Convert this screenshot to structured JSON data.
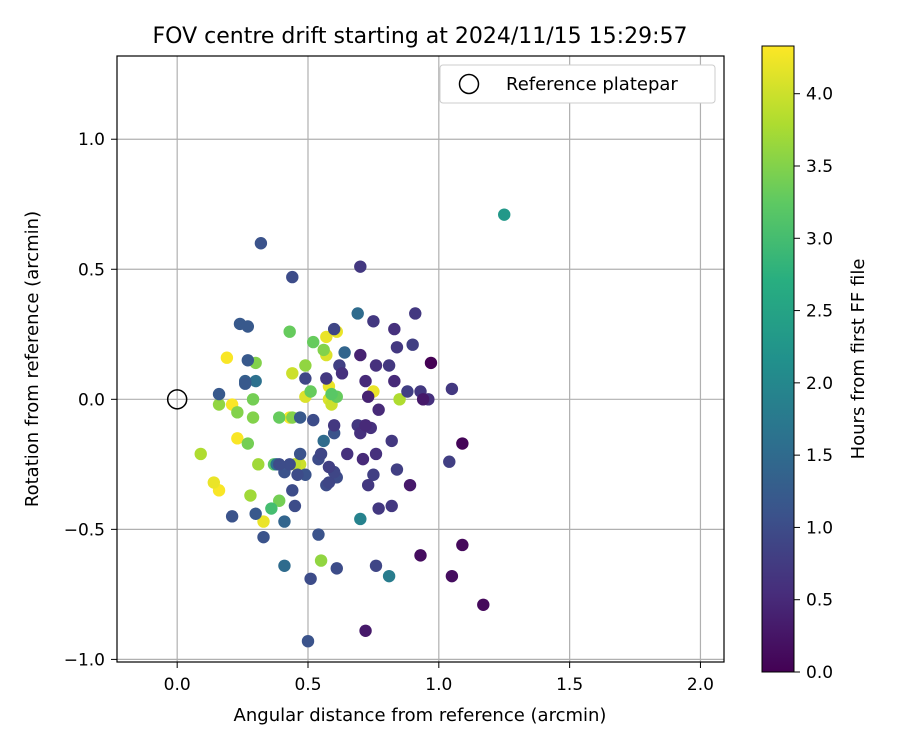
{
  "chart_data": {
    "type": "scatter",
    "title": "FOV centre drift starting at 2024/11/15 15:29:57",
    "xlabel": "Angular distance from reference (arcmin)",
    "ylabel": "Rotation from reference (arcmin)",
    "xlim": [
      -0.23,
      2.09
    ],
    "ylim": [
      -1.01,
      1.32
    ],
    "xticks": [
      0.0,
      0.5,
      1.0,
      1.5,
      2.0
    ],
    "xtick_labels": [
      "0.0",
      "0.5",
      "1.0",
      "1.5",
      "2.0"
    ],
    "yticks": [
      -1.0,
      -0.5,
      0.0,
      0.5,
      1.0
    ],
    "ytick_labels": [
      "−1.0",
      "−0.5",
      "0.0",
      "0.5",
      "1.0"
    ],
    "grid": true,
    "legend": {
      "placement": "top-right",
      "entries": [
        "Reference platepar"
      ]
    },
    "reference_point": {
      "x": 0.0,
      "y": 0.0,
      "marker": "open-circle",
      "color": "#000000"
    },
    "colorbar": {
      "label": "Hours from first FF file",
      "range": [
        0.0,
        4.33
      ],
      "ticks": [
        0.0,
        0.5,
        1.0,
        1.5,
        2.0,
        2.5,
        3.0,
        3.5,
        4.0
      ],
      "tick_labels": [
        "0.0",
        "0.5",
        "1.0",
        "1.5",
        "2.0",
        "2.5",
        "3.0",
        "3.5",
        "4.0"
      ],
      "colormap": "viridis",
      "colormap_stops": [
        "#440154",
        "#472d7b",
        "#3b528b",
        "#2c728e",
        "#21918c",
        "#28ae80",
        "#5ec962",
        "#addc30",
        "#fde725"
      ]
    },
    "points": [
      [
        0.97,
        0.14,
        0.0
      ],
      [
        1.09,
        -0.17,
        0.05
      ],
      [
        1.09,
        -0.56,
        0.1
      ],
      [
        1.17,
        -0.79,
        0.1
      ],
      [
        1.05,
        -0.68,
        0.15
      ],
      [
        0.93,
        -0.6,
        0.15
      ],
      [
        0.72,
        -0.89,
        0.3
      ],
      [
        0.89,
        -0.33,
        0.3
      ],
      [
        0.94,
        0.0,
        0.3
      ],
      [
        0.73,
        0.01,
        0.4
      ],
      [
        0.71,
        -0.23,
        0.5
      ],
      [
        0.72,
        -0.1,
        0.5
      ],
      [
        0.7,
        -0.13,
        0.6
      ],
      [
        0.65,
        -0.21,
        0.6
      ],
      [
        0.63,
        0.1,
        0.6
      ],
      [
        0.7,
        0.17,
        0.4
      ],
      [
        0.6,
        -0.1,
        0.7
      ],
      [
        0.72,
        0.07,
        0.5
      ],
      [
        0.69,
        -0.1,
        0.7
      ],
      [
        0.74,
        -0.11,
        0.6
      ],
      [
        0.77,
        -0.04,
        0.5
      ],
      [
        0.76,
        0.13,
        0.6
      ],
      [
        0.81,
        0.13,
        0.7
      ],
      [
        0.83,
        0.07,
        0.5
      ],
      [
        0.84,
        0.2,
        0.7
      ],
      [
        0.83,
        0.27,
        0.6
      ],
      [
        0.9,
        0.21,
        0.8
      ],
      [
        0.91,
        0.33,
        0.7
      ],
      [
        0.75,
        0.3,
        0.7
      ],
      [
        0.7,
        0.51,
        0.7
      ],
      [
        0.88,
        0.03,
        0.8
      ],
      [
        0.93,
        0.03,
        0.7
      ],
      [
        0.96,
        0.0,
        0.6
      ],
      [
        1.05,
        0.04,
        0.7
      ],
      [
        1.04,
        -0.24,
        0.8
      ],
      [
        0.84,
        -0.27,
        0.8
      ],
      [
        0.82,
        -0.16,
        0.7
      ],
      [
        0.76,
        -0.21,
        0.6
      ],
      [
        0.75,
        -0.29,
        0.8
      ],
      [
        0.73,
        -0.33,
        0.7
      ],
      [
        0.82,
        -0.41,
        0.7
      ],
      [
        0.77,
        -0.42,
        0.7
      ],
      [
        0.76,
        -0.64,
        0.9
      ],
      [
        0.61,
        -0.65,
        1.0
      ],
      [
        0.51,
        -0.69,
        1.0
      ],
      [
        0.5,
        -0.93,
        1.1
      ],
      [
        0.54,
        -0.52,
        1.1
      ],
      [
        0.58,
        -0.32,
        0.9
      ],
      [
        0.57,
        -0.33,
        1.0
      ],
      [
        0.6,
        -0.28,
        0.9
      ],
      [
        0.61,
        -0.3,
        1.0
      ],
      [
        0.58,
        -0.26,
        0.8
      ],
      [
        0.54,
        -0.23,
        1.0
      ],
      [
        0.55,
        -0.21,
        0.9
      ],
      [
        0.6,
        -0.13,
        1.1
      ],
      [
        0.56,
        -0.16,
        1.5
      ],
      [
        0.47,
        -0.21,
        1.1
      ],
      [
        0.49,
        -0.29,
        1.1
      ],
      [
        0.46,
        -0.29,
        1.0
      ],
      [
        0.44,
        -0.35,
        1.0
      ],
      [
        0.45,
        -0.41,
        1.0
      ],
      [
        0.43,
        -0.25,
        1.0
      ],
      [
        0.41,
        -0.28,
        1.1
      ],
      [
        0.39,
        -0.25,
        1.0
      ],
      [
        0.47,
        -0.07,
        1.2
      ],
      [
        0.52,
        -0.08,
        1.0
      ],
      [
        0.49,
        0.08,
        0.9
      ],
      [
        0.57,
        0.08,
        0.7
      ],
      [
        0.62,
        0.13,
        0.8
      ],
      [
        0.64,
        0.18,
        1.4
      ],
      [
        0.6,
        0.27,
        0.9
      ],
      [
        0.69,
        0.33,
        1.5
      ],
      [
        0.44,
        0.47,
        1.0
      ],
      [
        0.32,
        0.6,
        1.1
      ],
      [
        0.24,
        0.29,
        1.2
      ],
      [
        0.27,
        0.28,
        1.2
      ],
      [
        0.27,
        0.15,
        1.2
      ],
      [
        0.26,
        0.06,
        1.2
      ],
      [
        0.26,
        0.07,
        1.3
      ],
      [
        0.3,
        0.07,
        1.6
      ],
      [
        0.16,
        0.02,
        1.2
      ],
      [
        0.21,
        -0.45,
        1.1
      ],
      [
        0.3,
        -0.44,
        1.2
      ],
      [
        0.33,
        -0.53,
        1.1
      ],
      [
        0.41,
        -0.47,
        1.4
      ],
      [
        0.41,
        -0.64,
        1.5
      ],
      [
        0.38,
        -0.25,
        1.6
      ],
      [
        0.81,
        -0.68,
        1.8
      ],
      [
        0.7,
        -0.46,
        1.9
      ],
      [
        1.25,
        0.71,
        2.3
      ],
      [
        0.59,
        0.02,
        3.2
      ],
      [
        0.61,
        0.01,
        3.3
      ],
      [
        0.52,
        0.22,
        3.3
      ],
      [
        0.56,
        0.19,
        3.5
      ],
      [
        0.51,
        0.03,
        3.3
      ],
      [
        0.49,
        0.13,
        3.6
      ],
      [
        0.43,
        0.26,
        3.3
      ],
      [
        0.39,
        -0.07,
        3.3
      ],
      [
        0.44,
        -0.07,
        3.5
      ],
      [
        0.45,
        -0.25,
        3.9
      ],
      [
        0.47,
        -0.25,
        4.0
      ],
      [
        0.39,
        -0.39,
        3.4
      ],
      [
        0.36,
        -0.42,
        3.0
      ],
      [
        0.37,
        -0.25,
        3.2
      ],
      [
        0.31,
        -0.25,
        3.7
      ],
      [
        0.28,
        -0.37,
        3.7
      ],
      [
        0.27,
        -0.17,
        3.4
      ],
      [
        0.29,
        -0.07,
        3.5
      ],
      [
        0.23,
        -0.05,
        3.5
      ],
      [
        0.29,
        0.0,
        3.4
      ],
      [
        0.3,
        0.14,
        3.5
      ],
      [
        0.16,
        -0.02,
        3.6
      ],
      [
        0.09,
        -0.21,
        3.8
      ],
      [
        0.14,
        -0.32,
        4.2
      ],
      [
        0.16,
        -0.35,
        4.3
      ],
      [
        0.23,
        -0.15,
        4.3
      ],
      [
        0.33,
        -0.47,
        4.2
      ],
      [
        0.21,
        -0.02,
        4.3
      ],
      [
        0.19,
        0.16,
        4.3
      ],
      [
        0.44,
        0.1,
        4.0
      ],
      [
        0.49,
        0.01,
        4.1
      ],
      [
        0.57,
        0.24,
        4.2
      ],
      [
        0.57,
        0.17,
        4.1
      ],
      [
        0.61,
        0.26,
        4.2
      ],
      [
        0.58,
        0.05,
        4.2
      ],
      [
        0.58,
        0.0,
        4.1
      ],
      [
        0.59,
        -0.02,
        4.0
      ],
      [
        0.75,
        0.03,
        4.2
      ],
      [
        0.85,
        0.0,
        3.8
      ],
      [
        0.55,
        -0.62,
        3.6
      ],
      [
        0.43,
        -0.07,
        4.3
      ]
    ]
  }
}
